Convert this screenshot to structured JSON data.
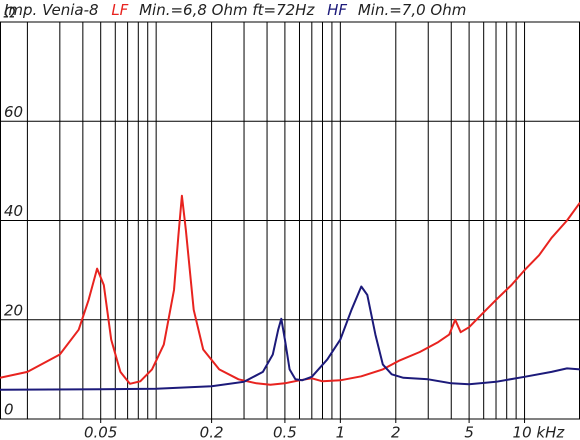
{
  "chart_data": {
    "type": "line",
    "title": "Imp. Venia-8",
    "annotations": [
      "Min.=6,8 Ohm ft=72Hz",
      "Min.=7,0 Ohm"
    ],
    "xlog": true,
    "xlim": [
      0.0142,
      20
    ],
    "ylim": [
      0,
      80
    ],
    "xticks": [
      0.05,
      0.2,
      0.5,
      1,
      2,
      5,
      {
        "value": 10,
        "label": "10 kHz"
      }
    ],
    "xgrid": [
      0.02,
      0.03,
      0.04,
      0.05,
      0.06,
      0.07,
      0.08,
      0.09,
      0.1,
      0.2,
      0.3,
      0.4,
      0.5,
      0.6,
      0.7,
      0.8,
      0.9,
      1,
      2,
      3,
      4,
      5,
      6,
      7,
      8,
      9,
      10,
      20
    ],
    "yticks": [
      0,
      20,
      40,
      60,
      {
        "value": 80,
        "label": "Ω"
      }
    ],
    "grid": true,
    "series": [
      {
        "name": "LF",
        "color": "#e8231f",
        "x": [
          0.0142,
          0.02,
          0.03,
          0.038,
          0.043,
          0.0478,
          0.052,
          0.057,
          0.064,
          0.072,
          0.082,
          0.095,
          0.11,
          0.125,
          0.132,
          0.138,
          0.145,
          0.16,
          0.18,
          0.22,
          0.28,
          0.35,
          0.417,
          0.5,
          0.6,
          0.7,
          0.8,
          1,
          1.3,
          1.7,
          2.1,
          2.7,
          3.4,
          3.9,
          4.2,
          4.5,
          5,
          6,
          7,
          8.5,
          10,
          12,
          14,
          17,
          20
        ],
        "values": [
          8.3,
          9.5,
          13,
          18,
          24,
          30.3,
          27,
          16,
          9.5,
          7.1,
          7.6,
          10,
          15,
          26,
          37,
          45,
          38,
          22,
          14,
          10,
          8,
          7.2,
          6.9,
          7.2,
          7.8,
          8.2,
          7.6,
          7.8,
          8.6,
          10,
          11.8,
          13.5,
          15.5,
          17,
          20,
          17.5,
          18.5,
          21.5,
          24,
          27,
          30,
          33,
          36.5,
          40,
          43.6
        ]
      },
      {
        "name": "HF",
        "color": "#1c1a7a",
        "x": [
          0.0142,
          0.05,
          0.1,
          0.2,
          0.3,
          0.38,
          0.43,
          0.46,
          0.478,
          0.5,
          0.53,
          0.57,
          0.62,
          0.7,
          0.85,
          1,
          1.15,
          1.3,
          1.4,
          1.55,
          1.7,
          1.9,
          2.2,
          3,
          4,
          5,
          7,
          10,
          14,
          17,
          20
        ],
        "values": [
          5.9,
          6,
          6.1,
          6.6,
          7.5,
          9.5,
          13,
          18,
          20.2,
          16,
          10,
          8,
          7.8,
          8.5,
          12,
          16,
          22,
          26.7,
          25,
          17,
          11,
          9,
          8.3,
          8,
          7.2,
          7,
          7.5,
          8.5,
          9.5,
          10.2,
          10
        ]
      }
    ]
  }
}
